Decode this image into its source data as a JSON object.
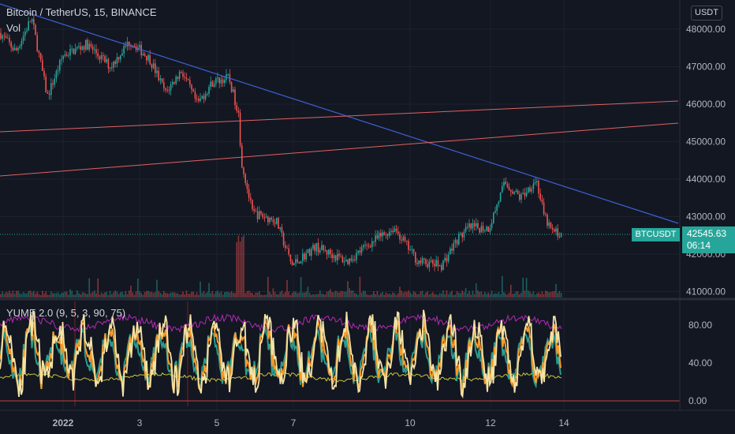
{
  "header": {
    "symbol_title": "Bitcoin / TetherUS, 15, BINANCE",
    "volume_label": "Vol",
    "currency_button": "USDT"
  },
  "price_axis": {
    "ticks": [
      "48000.00",
      "47000.00",
      "46000.00",
      "45000.00",
      "44000.00",
      "43000.00",
      "42000.00",
      "41000.00"
    ]
  },
  "current_price": {
    "symbol": "BTCUSDT",
    "price": "42545.63",
    "countdown": "06:14"
  },
  "indicator": {
    "label": "YUME 2.0 (9, 5, 3, 90, 75)",
    "ticks": [
      "80.00",
      "40.00",
      "0.00"
    ]
  },
  "time_axis": {
    "ticks": [
      "2022",
      "3",
      "5",
      "7",
      "10",
      "12",
      "14"
    ]
  },
  "colors": {
    "background": "#131722",
    "up": "#26a69a",
    "down": "#ef5350",
    "trendline_blue": "#3d62d6",
    "trendline_red": "#e06262",
    "indicator_magenta": "#b52ab5",
    "indicator_yellow": "#c8c83c",
    "indicator_cream": "#f4e3a6",
    "indicator_orange": "#f59b2a",
    "indicator_teal": "#2a9d8f"
  }
}
